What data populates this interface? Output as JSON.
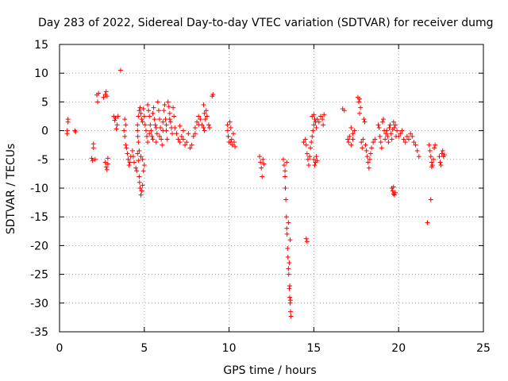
{
  "chart_data": {
    "type": "scatter",
    "title": "Day 283 of 2022, Sidereal Day-to-day VTEC variation (SDTVAR) for receiver dumg",
    "xlabel": "GPS time / hours",
    "ylabel": "SDTVAR / TECUs",
    "xlim": [
      0,
      25
    ],
    "ylim": [
      -35,
      15
    ],
    "xticks": [
      "0",
      "5",
      "10",
      "15",
      "20",
      "25"
    ],
    "yticks": [
      "15",
      "10",
      "5",
      "0",
      "-5",
      "-10",
      "-15",
      "-20",
      "-25",
      "-30",
      "-35"
    ],
    "grid": true,
    "marker": "+",
    "color": "#ff0000",
    "series": [
      {
        "name": "SDTVAR",
        "points": [
          [
            0.45,
            -0.5
          ],
          [
            0.45,
            0.0
          ],
          [
            0.5,
            1.5
          ],
          [
            0.5,
            2.0
          ],
          [
            0.9,
            0.0
          ],
          [
            0.95,
            -0.2
          ],
          [
            1.9,
            -4.8
          ],
          [
            1.95,
            -5.2
          ],
          [
            2.0,
            -3.0
          ],
          [
            2.0,
            -2.3
          ],
          [
            2.1,
            -5.0
          ],
          [
            2.2,
            6.2
          ],
          [
            2.25,
            5.0
          ],
          [
            2.3,
            6.5
          ],
          [
            2.6,
            5.8
          ],
          [
            2.7,
            6.3
          ],
          [
            2.75,
            6.8
          ],
          [
            2.8,
            6.0
          ],
          [
            2.7,
            -5.5
          ],
          [
            2.75,
            -6.3
          ],
          [
            2.8,
            -6.8
          ],
          [
            2.85,
            -4.8
          ],
          [
            2.85,
            -5.8
          ],
          [
            3.2,
            2.5
          ],
          [
            3.25,
            1.8
          ],
          [
            3.3,
            2.2
          ],
          [
            3.35,
            0.3
          ],
          [
            3.4,
            1.0
          ],
          [
            3.45,
            2.5
          ],
          [
            3.6,
            10.5
          ],
          [
            3.8,
            0.0
          ],
          [
            3.85,
            -1.0
          ],
          [
            3.9,
            -2.5
          ],
          [
            3.95,
            -3.0
          ],
          [
            4.0,
            -4.0
          ],
          [
            4.05,
            -5.0
          ],
          [
            4.1,
            -6.0
          ],
          [
            4.15,
            -5.5
          ],
          [
            4.2,
            -4.5
          ],
          [
            3.85,
            2.0
          ],
          [
            3.9,
            1.0
          ],
          [
            4.3,
            -3.5
          ],
          [
            4.35,
            -4.5
          ],
          [
            4.4,
            -5.5
          ],
          [
            4.5,
            -6.5
          ],
          [
            4.55,
            -7.0
          ],
          [
            4.6,
            -4.0
          ],
          [
            4.65,
            -5.2
          ],
          [
            4.6,
            1.0
          ],
          [
            4.65,
            2.5
          ],
          [
            4.7,
            3.5
          ],
          [
            4.75,
            4.0
          ],
          [
            4.8,
            3.0
          ],
          [
            4.85,
            2.0
          ],
          [
            4.9,
            1.5
          ],
          [
            4.95,
            3.8
          ],
          [
            5.0,
            2.5
          ],
          [
            5.05,
            1.0
          ],
          [
            5.1,
            0.0
          ],
          [
            5.15,
            -1.0
          ],
          [
            5.2,
            -2.0
          ],
          [
            4.6,
            0.0
          ],
          [
            4.62,
            -1.0
          ],
          [
            4.65,
            -2.0
          ],
          [
            4.7,
            -3.5
          ],
          [
            4.7,
            -8.0
          ],
          [
            4.72,
            -9.0
          ],
          [
            4.75,
            -10.0
          ],
          [
            4.8,
            -11.2
          ],
          [
            4.85,
            -10.5
          ],
          [
            4.9,
            -9.5
          ],
          [
            4.95,
            -7.0
          ],
          [
            5.0,
            -6.0
          ],
          [
            4.9,
            -5.0
          ],
          [
            4.8,
            -4.5
          ],
          [
            5.2,
            4.5
          ],
          [
            5.25,
            3.5
          ],
          [
            5.3,
            2.5
          ],
          [
            5.35,
            1.0
          ],
          [
            5.4,
            0.0
          ],
          [
            5.45,
            -1.0
          ],
          [
            5.5,
            3.0
          ],
          [
            5.55,
            4.0
          ],
          [
            5.6,
            2.0
          ],
          [
            5.65,
            1.0
          ],
          [
            5.7,
            0.5
          ],
          [
            5.75,
            -0.5
          ],
          [
            5.8,
            5.0
          ],
          [
            5.85,
            3.5
          ],
          [
            5.9,
            2.0
          ],
          [
            5.95,
            0.5
          ],
          [
            6.0,
            -1.5
          ],
          [
            6.05,
            -2.5
          ],
          [
            6.1,
            1.5
          ],
          [
            6.15,
            3.5
          ],
          [
            6.2,
            4.5
          ],
          [
            6.25,
            2.0
          ],
          [
            6.3,
            0.0
          ],
          [
            6.35,
            -1.5
          ],
          [
            6.4,
            5.0
          ],
          [
            6.45,
            4.2
          ],
          [
            6.5,
            3.0
          ],
          [
            6.55,
            1.5
          ],
          [
            6.6,
            0.5
          ],
          [
            6.65,
            -0.5
          ],
          [
            6.7,
            4.0
          ],
          [
            6.75,
            2.5
          ],
          [
            5.3,
            -0.5
          ],
          [
            5.5,
            -1.5
          ],
          [
            5.7,
            -2.0
          ],
          [
            5.9,
            -1.0
          ],
          [
            6.1,
            0.0
          ],
          [
            6.3,
            1.0
          ],
          [
            6.5,
            2.0
          ],
          [
            6.8,
            0.5
          ],
          [
            6.9,
            -0.5
          ],
          [
            7.0,
            -1.5
          ],
          [
            7.1,
            -2.0
          ],
          [
            7.2,
            -1.0
          ],
          [
            7.3,
            0.0
          ],
          [
            7.4,
            -2.5
          ],
          [
            7.5,
            -2.0
          ],
          [
            7.6,
            -0.5
          ],
          [
            7.7,
            -3.0
          ],
          [
            7.8,
            -2.5
          ],
          [
            7.3,
            -1.5
          ],
          [
            7.1,
            0.8
          ],
          [
            7.9,
            -1.0
          ],
          [
            8.0,
            0.5
          ],
          [
            8.1,
            1.5
          ],
          [
            8.2,
            1.0
          ],
          [
            8.3,
            2.0
          ],
          [
            8.4,
            1.0
          ],
          [
            8.5,
            0.5
          ],
          [
            8.0,
            -0.5
          ],
          [
            8.2,
            2.5
          ],
          [
            8.5,
            4.5
          ],
          [
            8.55,
            3.0
          ],
          [
            8.6,
            2.0
          ],
          [
            8.65,
            3.5
          ],
          [
            8.7,
            2.5
          ],
          [
            8.55,
            0.0
          ],
          [
            8.8,
            1.0
          ],
          [
            8.85,
            0.5
          ],
          [
            9.0,
            6.0
          ],
          [
            9.05,
            6.3
          ],
          [
            9.9,
            1.0
          ],
          [
            9.92,
            0.0
          ],
          [
            9.95,
            -1.0
          ],
          [
            10.0,
            -2.0
          ],
          [
            10.05,
            1.5
          ],
          [
            10.1,
            0.5
          ],
          [
            10.15,
            -1.5
          ],
          [
            10.2,
            -2.5
          ],
          [
            10.25,
            -0.5
          ],
          [
            10.3,
            -2.0
          ],
          [
            10.35,
            -2.8
          ],
          [
            10.1,
            -2.0
          ],
          [
            11.8,
            -4.5
          ],
          [
            11.85,
            -5.5
          ],
          [
            11.9,
            -6.5
          ],
          [
            11.95,
            -8.0
          ],
          [
            12.0,
            -5.0
          ],
          [
            12.05,
            -5.8
          ],
          [
            13.2,
            -5.0
          ],
          [
            13.25,
            -6.0
          ],
          [
            13.3,
            -8.0
          ],
          [
            13.32,
            -10.0
          ],
          [
            13.35,
            -12.0
          ],
          [
            13.38,
            -15.0
          ],
          [
            13.4,
            -17.0
          ],
          [
            13.42,
            -18.0
          ],
          [
            13.45,
            -20.5
          ],
          [
            13.47,
            -22.0
          ],
          [
            13.5,
            -24.0
          ],
          [
            13.52,
            -25.0
          ],
          [
            13.55,
            -27.5
          ],
          [
            13.58,
            -29.0
          ],
          [
            13.6,
            -30.0
          ],
          [
            13.62,
            -31.5
          ],
          [
            13.65,
            -32.3
          ],
          [
            13.5,
            -16.0
          ],
          [
            13.6,
            -19.0
          ],
          [
            13.55,
            -23.0
          ],
          [
            13.58,
            -27.0
          ],
          [
            13.62,
            -29.5
          ],
          [
            13.4,
            -5.5
          ],
          [
            13.3,
            -7.0
          ],
          [
            14.4,
            -2.0
          ],
          [
            14.5,
            -1.5
          ],
          [
            14.55,
            -2.5
          ],
          [
            14.6,
            -4.0
          ],
          [
            14.65,
            -5.0
          ],
          [
            14.7,
            -6.0
          ],
          [
            14.75,
            -4.5
          ],
          [
            14.8,
            -3.0
          ],
          [
            14.85,
            -2.0
          ],
          [
            14.9,
            -1.0
          ],
          [
            14.95,
            0.0
          ],
          [
            15.0,
            1.0
          ],
          [
            15.05,
            2.0
          ],
          [
            15.1,
            1.5
          ],
          [
            15.15,
            0.5
          ],
          [
            15.0,
            -5.0
          ],
          [
            15.05,
            -6.0
          ],
          [
            15.1,
            -5.5
          ],
          [
            15.15,
            -4.5
          ],
          [
            15.2,
            -5.2
          ],
          [
            14.9,
            2.5
          ],
          [
            15.0,
            2.8
          ],
          [
            15.2,
            2.0
          ],
          [
            15.3,
            1.5
          ],
          [
            15.4,
            2.5
          ],
          [
            15.5,
            2.0
          ],
          [
            15.6,
            2.8
          ],
          [
            15.55,
            1.0
          ],
          [
            14.55,
            -18.8
          ],
          [
            14.6,
            -19.3
          ],
          [
            16.7,
            3.8
          ],
          [
            16.8,
            3.5
          ],
          [
            17.0,
            -1.5
          ],
          [
            17.05,
            -2.0
          ],
          [
            17.1,
            -1.0
          ],
          [
            17.2,
            -2.5
          ],
          [
            17.3,
            -1.5
          ],
          [
            17.4,
            0.0
          ],
          [
            17.2,
            0.5
          ],
          [
            17.3,
            -0.5
          ],
          [
            17.6,
            5.8
          ],
          [
            17.65,
            5.0
          ],
          [
            17.7,
            5.5
          ],
          [
            17.75,
            4.0
          ],
          [
            17.7,
            3.0
          ],
          [
            17.8,
            -2.0
          ],
          [
            17.85,
            -3.0
          ],
          [
            17.9,
            -1.5
          ],
          [
            17.95,
            2.0
          ],
          [
            18.0,
            1.5
          ],
          [
            18.05,
            -2.5
          ],
          [
            18.1,
            -3.5
          ],
          [
            18.15,
            -4.5
          ],
          [
            18.2,
            -5.5
          ],
          [
            18.25,
            -6.5
          ],
          [
            18.3,
            -5.0
          ],
          [
            18.35,
            -4.0
          ],
          [
            18.4,
            -3.0
          ],
          [
            18.5,
            -2.0
          ],
          [
            18.6,
            -1.5
          ],
          [
            18.8,
            1.0
          ],
          [
            18.85,
            0.5
          ],
          [
            18.9,
            -1.0
          ],
          [
            18.95,
            -2.0
          ],
          [
            19.0,
            -3.0
          ],
          [
            19.05,
            1.5
          ],
          [
            19.1,
            2.0
          ],
          [
            19.15,
            0.0
          ],
          [
            19.2,
            -1.5
          ],
          [
            19.25,
            -0.5
          ],
          [
            19.3,
            0.0
          ],
          [
            19.35,
            -1.0
          ],
          [
            19.4,
            -2.0
          ],
          [
            19.45,
            0.5
          ],
          [
            19.5,
            1.0
          ],
          [
            19.55,
            -0.5
          ],
          [
            19.6,
            -1.5
          ],
          [
            19.65,
            0.2
          ],
          [
            19.7,
            1.5
          ],
          [
            19.75,
            0.5
          ],
          [
            19.8,
            1.0
          ],
          [
            19.85,
            -1.0
          ],
          [
            19.6,
            -10.0
          ],
          [
            19.65,
            -10.5
          ],
          [
            19.7,
            -11.0
          ],
          [
            19.75,
            -11.2
          ],
          [
            19.8,
            -10.8
          ],
          [
            19.7,
            -9.8
          ],
          [
            19.9,
            0.0
          ],
          [
            20.0,
            -1.0
          ],
          [
            20.1,
            -0.5
          ],
          [
            20.2,
            0.0
          ],
          [
            20.3,
            -1.5
          ],
          [
            20.4,
            -2.0
          ],
          [
            20.5,
            -1.0
          ],
          [
            20.6,
            -1.5
          ],
          [
            20.7,
            -0.5
          ],
          [
            20.8,
            -1.0
          ],
          [
            20.9,
            -2.0
          ],
          [
            21.0,
            -2.5
          ],
          [
            21.1,
            -3.5
          ],
          [
            21.2,
            -4.5
          ],
          [
            21.7,
            -16.0
          ],
          [
            21.9,
            -12.0
          ],
          [
            21.8,
            -2.5
          ],
          [
            21.85,
            -3.5
          ],
          [
            21.9,
            -4.5
          ],
          [
            21.95,
            -5.5
          ],
          [
            22.0,
            -6.0
          ],
          [
            22.05,
            -5.0
          ],
          [
            22.1,
            -3.0
          ],
          [
            22.15,
            -2.5
          ],
          [
            21.95,
            -6.3
          ],
          [
            22.4,
            -4.5
          ],
          [
            22.45,
            -5.5
          ],
          [
            22.5,
            -6.0
          ],
          [
            22.55,
            -4.0
          ],
          [
            22.6,
            -3.5
          ],
          [
            22.65,
            -4.5
          ],
          [
            22.7,
            -4.2
          ]
        ]
      }
    ]
  }
}
